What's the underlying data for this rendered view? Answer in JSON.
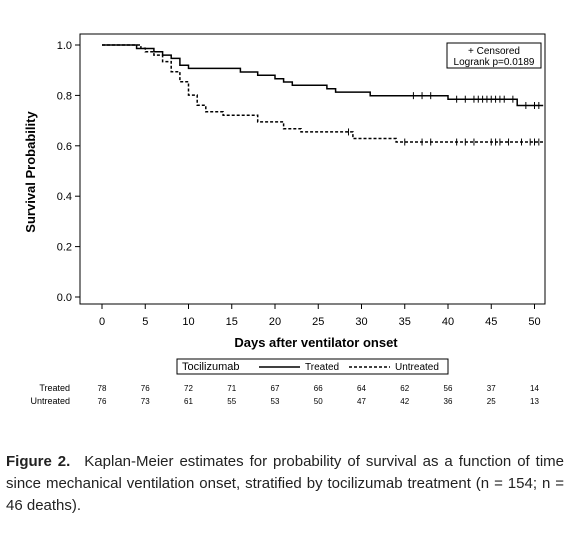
{
  "chart_data": {
    "type": "line",
    "title": "",
    "xlabel": "Days after ventilator onset",
    "ylabel": "Survival Probability",
    "xlim": [
      -3,
      51
    ],
    "ylim": [
      0,
      1.0
    ],
    "x_ticks": [
      "0",
      "5",
      "10",
      "15",
      "20",
      "25",
      "30",
      "35",
      "40",
      "45",
      "50"
    ],
    "y_ticks": [
      "0.0",
      "0.2",
      "0.4",
      "0.6",
      "0.8",
      "1.0"
    ],
    "inset_legend": [
      "+ Censored",
      "Logrank p=0.0189"
    ],
    "legend_title": "Tocilizumab",
    "series": [
      {
        "name": "Treated",
        "style": "solid",
        "color": "#000000",
        "points": [
          [
            0,
            1.0
          ],
          [
            3,
            1.0
          ],
          [
            4,
            0.986
          ],
          [
            6,
            0.973
          ],
          [
            7,
            0.96
          ],
          [
            8,
            0.947
          ],
          [
            9,
            0.92
          ],
          [
            10,
            0.907
          ],
          [
            15,
            0.907
          ],
          [
            16,
            0.893
          ],
          [
            18,
            0.88
          ],
          [
            20,
            0.866
          ],
          [
            21,
            0.853
          ],
          [
            22,
            0.84
          ],
          [
            25,
            0.84
          ],
          [
            26,
            0.826
          ],
          [
            27,
            0.813
          ],
          [
            30,
            0.813
          ],
          [
            31,
            0.799
          ],
          [
            39,
            0.799
          ],
          [
            40,
            0.785
          ],
          [
            47,
            0.785
          ],
          [
            48,
            0.76
          ],
          [
            51,
            0.76
          ]
        ],
        "censored": [
          36,
          37,
          38,
          41,
          42,
          43,
          43.5,
          44,
          44.5,
          45,
          45.5,
          46,
          46.5,
          47.5,
          49,
          50,
          50.5
        ]
      },
      {
        "name": "Untreated",
        "style": "dashed",
        "color": "#000000",
        "points": [
          [
            0,
            1.0
          ],
          [
            4,
            1.0
          ],
          [
            4.5,
            0.987
          ],
          [
            5,
            0.973
          ],
          [
            6,
            0.96
          ],
          [
            7,
            0.934
          ],
          [
            8,
            0.894
          ],
          [
            9,
            0.854
          ],
          [
            10,
            0.801
          ],
          [
            11,
            0.761
          ],
          [
            12,
            0.735
          ],
          [
            14,
            0.721
          ],
          [
            17,
            0.721
          ],
          [
            18,
            0.695
          ],
          [
            21,
            0.668
          ],
          [
            23,
            0.655
          ],
          [
            28,
            0.655
          ],
          [
            29,
            0.629
          ],
          [
            33,
            0.629
          ],
          [
            34,
            0.615
          ],
          [
            51,
            0.615
          ]
        ],
        "censored": [
          28.5,
          35,
          37,
          38,
          41,
          42,
          43,
          45,
          45.5,
          46,
          47,
          48.5,
          49.5,
          50,
          50.5
        ]
      }
    ],
    "risk_table": {
      "times": [
        "0",
        "5",
        "10",
        "15",
        "20",
        "25",
        "30",
        "35",
        "40",
        "45",
        "50"
      ],
      "rows": [
        {
          "label": "Treated",
          "values": [
            "78",
            "76",
            "72",
            "71",
            "67",
            "66",
            "64",
            "62",
            "56",
            "37",
            "14"
          ]
        },
        {
          "label": "Untreated",
          "values": [
            "76",
            "73",
            "61",
            "55",
            "53",
            "50",
            "47",
            "42",
            "36",
            "25",
            "13"
          ]
        }
      ]
    }
  },
  "caption": {
    "label": "Figure 2.",
    "text": "Kaplan-Meier estimates for probability of survival as a function of time since mechanical ventilation onset, stratified by tocilizumab treatment (n = 154; n = 46 deaths)."
  }
}
